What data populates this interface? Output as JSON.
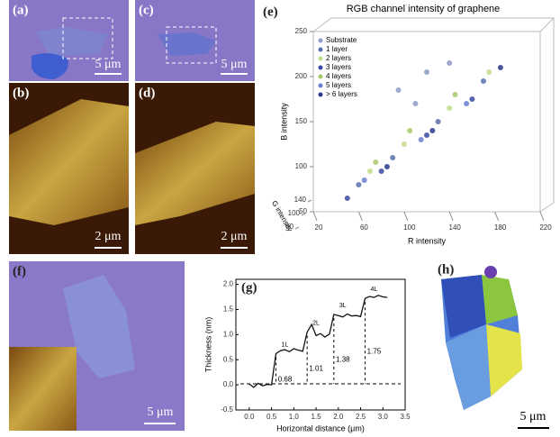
{
  "panels": {
    "a": {
      "label": "(a)",
      "scale": "5 μm"
    },
    "b": {
      "label": "(b)",
      "scale": "2 μm"
    },
    "c": {
      "label": "(c)",
      "scale": "5 μm"
    },
    "d": {
      "label": "(d)",
      "scale": "2 μm"
    },
    "f": {
      "label": "(f)",
      "scale": "5 μm"
    },
    "h": {
      "label": "(h)",
      "scale": "5 μm"
    }
  },
  "chart_data": [
    {
      "type": "scatter",
      "label": "(e)",
      "title": "RGB channel intensity of graphene",
      "x_label": "R intensity",
      "y_label": "B intensity",
      "z_label": "G intensity",
      "xlim": [
        20,
        220
      ],
      "xticks": [
        20,
        60,
        100,
        140,
        180,
        220
      ],
      "ylim": [
        50,
        250
      ],
      "yticks": [
        50,
        100,
        150,
        200,
        250
      ],
      "zticks": [
        140,
        100,
        60
      ],
      "series": [
        {
          "name": "Substrate",
          "color": "#8e9ac8",
          "x": [
            95,
            110,
            120,
            140
          ],
          "values": [
            185,
            170,
            205,
            215
          ]
        },
        {
          "name": "1 layer",
          "color": "#5a6fb0",
          "x": [
            60,
            90,
            130,
            170
          ],
          "values": [
            80,
            110,
            150,
            195
          ]
        },
        {
          "name": "2 layers",
          "color": "#c3dc86",
          "x": [
            70,
            100,
            140,
            175
          ],
          "values": [
            95,
            125,
            165,
            205
          ]
        },
        {
          "name": "3 layers",
          "color": "#3949a0",
          "x": [
            50,
            80,
            120,
            160
          ],
          "values": [
            65,
            95,
            135,
            175
          ]
        },
        {
          "name": "4 layers",
          "color": "#a8c96a",
          "x": [
            75,
            105,
            145
          ],
          "values": [
            105,
            140,
            180
          ]
        },
        {
          "name": "5 layers",
          "color": "#6b7fd0",
          "x": [
            65,
            115,
            155
          ],
          "values": [
            85,
            130,
            170
          ]
        },
        {
          "name": "> 6 layers",
          "color": "#2c3a8c",
          "x": [
            85,
            125,
            185
          ],
          "values": [
            100,
            140,
            210
          ]
        }
      ]
    },
    {
      "type": "line",
      "label": "(g)",
      "x_label": "Horizontal distance (μm)",
      "y_label": "Thickness (nm)",
      "xlim": [
        -0.3,
        3.5
      ],
      "xticks": [
        {
          "value": 0,
          "label": "0.0"
        },
        0.5,
        {
          "value": 1,
          "label": "1.0"
        },
        1.5,
        {
          "value": 2,
          "label": "2.0"
        },
        2.5,
        {
          "value": 3,
          "label": "3.0"
        },
        3.5
      ],
      "ylim": [
        -0.5,
        2.1
      ],
      "yticks": [
        -0.5,
        {
          "value": 0,
          "label": "0.0"
        },
        0.5,
        {
          "value": 1,
          "label": "1.0"
        },
        1.5,
        {
          "value": 2,
          "label": "2.0"
        }
      ],
      "color": "#111111",
      "x": [
        0.0,
        0.1,
        0.2,
        0.3,
        0.4,
        0.5,
        0.6,
        0.7,
        0.8,
        0.9,
        1.0,
        1.1,
        1.2,
        1.3,
        1.4,
        1.5,
        1.6,
        1.7,
        1.8,
        1.9,
        2.0,
        2.1,
        2.2,
        2.3,
        2.4,
        2.5,
        2.6,
        2.7,
        2.8,
        2.9,
        3.0,
        3.1
      ],
      "values": [
        0.02,
        -0.05,
        0.03,
        -0.02,
        0.01,
        0.0,
        0.62,
        0.68,
        0.7,
        0.66,
        0.72,
        0.69,
        0.67,
        1.05,
        1.2,
        0.98,
        1.02,
        0.95,
        1.01,
        1.4,
        1.38,
        1.35,
        1.41,
        1.37,
        1.38,
        1.36,
        1.72,
        1.76,
        1.74,
        1.78,
        1.75,
        1.74
      ],
      "layer_labels": [
        "1L",
        "2L",
        "3L",
        "4L"
      ],
      "step_labels": [
        "0.68",
        "1.01",
        "1.38",
        "1.75"
      ]
    }
  ]
}
